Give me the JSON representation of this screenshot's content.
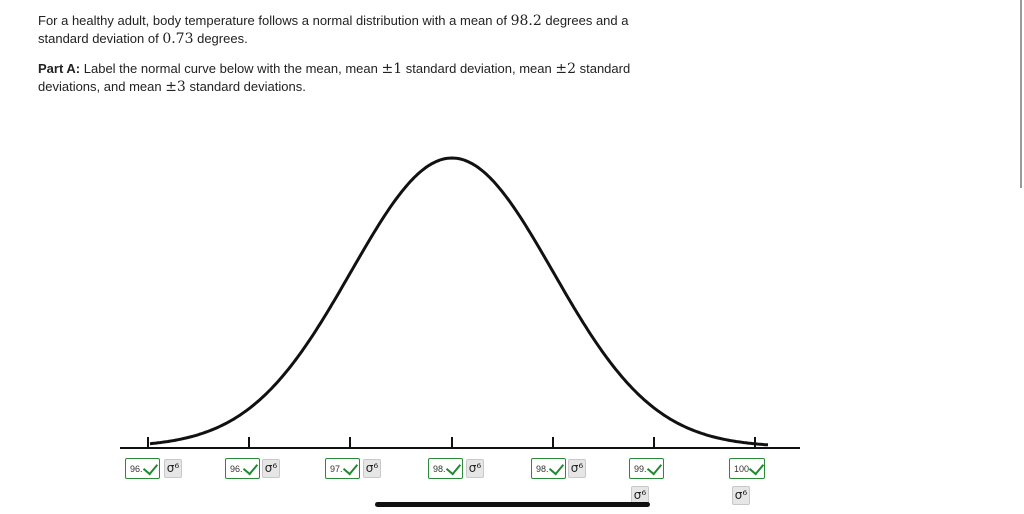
{
  "problem": {
    "intro_pre": "For a healthy adult, body temperature follows a normal distribution with a mean of ",
    "mean": "98.2",
    "intro_mid": " degrees and a standard deviation of ",
    "sd": "0.73",
    "intro_post": " degrees.",
    "part_label": "Part A:",
    "part_pre": " Label the normal curve below with the mean, mean ",
    "pm1": "±1",
    "part_mid1": " standard deviation, mean ",
    "pm2": "±2",
    "part_mid2": " standard deviations, and mean ",
    "pm3": "±3",
    "part_post": " standard deviations."
  },
  "answers": [
    {
      "value": "96.",
      "status": "correct"
    },
    {
      "value": "96.",
      "status": "correct"
    },
    {
      "value": "97.",
      "status": "correct"
    },
    {
      "value": "98.",
      "status": "correct"
    },
    {
      "value": "98.",
      "status": "correct"
    },
    {
      "value": "99.",
      "status": "correct"
    },
    {
      "value": "100",
      "status": "correct"
    }
  ],
  "key_icon": "σ⁶",
  "colors": {
    "correct": "#1f8a2f",
    "curve": "#111111"
  }
}
